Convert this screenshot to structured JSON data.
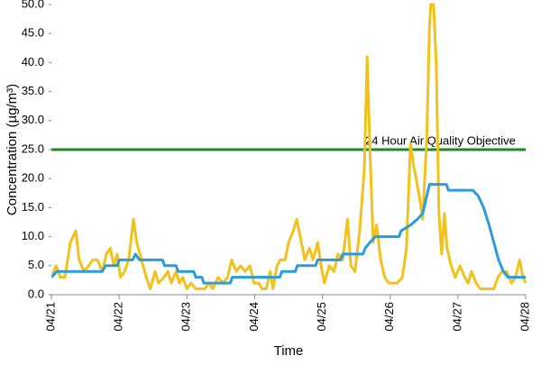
{
  "chart_data": {
    "type": "line",
    "xlabel": "Time",
    "ylabel": "Concentration (µg/m³)",
    "xlim": [
      0,
      7
    ],
    "ylim": [
      0,
      50
    ],
    "xticks": [
      {
        "value": 0,
        "label": "04/21"
      },
      {
        "value": 1,
        "label": "04/22"
      },
      {
        "value": 2,
        "label": "04/23"
      },
      {
        "value": 3,
        "label": "04/24"
      },
      {
        "value": 4,
        "label": "04/25"
      },
      {
        "value": 5,
        "label": "04/26"
      },
      {
        "value": 6,
        "label": "04/27"
      },
      {
        "value": 7,
        "label": "04/28"
      }
    ],
    "yticks": [
      {
        "value": 0,
        "label": "0.0"
      },
      {
        "value": 5,
        "label": "5.0"
      },
      {
        "value": 10,
        "label": "10.0"
      },
      {
        "value": 15,
        "label": "15.0"
      },
      {
        "value": 20,
        "label": "20.0"
      },
      {
        "value": 25,
        "label": "25.0"
      },
      {
        "value": 30,
        "label": "30.0"
      },
      {
        "value": 35,
        "label": "35.0"
      },
      {
        "value": 40,
        "label": "40.0"
      },
      {
        "value": 45,
        "label": "45.0"
      },
      {
        "value": 50,
        "label": "50.0"
      }
    ],
    "threshold": {
      "value": 25,
      "label": "24 Hour Air Quality Objective",
      "color": "#1f8a1f"
    },
    "series": [
      {
        "color": "#f2c21b",
        "x": [
          0,
          0.07,
          0.13,
          0.2,
          0.28,
          0.36,
          0.41,
          0.48,
          0.55,
          0.61,
          0.68,
          0.75,
          0.81,
          0.87,
          0.92,
          0.97,
          1.02,
          1.08,
          1.14,
          1.21,
          1.26,
          1.33,
          1.4,
          1.46,
          1.53,
          1.58,
          1.66,
          1.72,
          1.77,
          1.84,
          1.89,
          1.94,
          2.0,
          2.06,
          2.13,
          2.2,
          2.26,
          2.33,
          2.38,
          2.46,
          2.53,
          2.6,
          2.66,
          2.73,
          2.79,
          2.86,
          2.93,
          2.99,
          3.06,
          3.11,
          3.17,
          3.23,
          3.27,
          3.33,
          3.38,
          3.45,
          3.5,
          3.57,
          3.62,
          3.69,
          3.74,
          3.81,
          3.86,
          3.93,
          3.98,
          4.03,
          4.1,
          4.17,
          4.23,
          4.3,
          4.37,
          4.42,
          4.48,
          4.55,
          4.62,
          4.66,
          4.71,
          4.75,
          4.8,
          4.86,
          4.92,
          4.98,
          5.04,
          5.1,
          5.18,
          5.24,
          5.3,
          5.35,
          5.43,
          5.48,
          5.54,
          5.58,
          5.6,
          5.64,
          5.68,
          5.72,
          5.76,
          5.8,
          5.84,
          5.9,
          5.96,
          6.03,
          6.1,
          6.15,
          6.2,
          6.27,
          6.33,
          6.4,
          6.47,
          6.53,
          6.59,
          6.65,
          6.72,
          6.79,
          6.85,
          6.91,
          6.96,
          7.0
        ],
        "values": [
          3,
          5,
          3,
          3,
          9,
          11,
          6,
          4,
          5,
          6,
          6,
          4,
          7,
          8,
          5,
          7,
          3,
          4,
          6,
          13,
          9,
          6,
          3,
          1,
          4,
          2,
          3,
          4,
          2,
          4,
          2,
          3,
          1,
          2,
          1,
          1,
          1,
          2,
          1,
          3,
          2,
          3,
          6,
          4,
          5,
          4,
          5,
          2,
          2,
          1,
          1,
          4,
          1,
          5,
          6,
          6,
          9,
          11,
          13,
          9,
          6,
          8,
          6,
          9,
          5,
          2,
          5,
          4,
          7,
          6,
          13,
          5,
          4,
          11,
          22,
          41,
          22,
          9,
          12,
          6,
          3,
          2,
          2,
          2,
          3,
          8,
          26,
          22,
          17,
          13,
          27,
          46,
          50,
          50,
          40,
          14,
          7,
          14,
          8,
          5,
          3,
          5,
          3,
          2,
          4,
          2,
          1,
          1,
          1,
          1,
          3,
          4,
          4,
          2,
          3,
          6,
          3,
          2
        ]
      },
      {
        "color": "#2b9be0",
        "x": [
          0,
          0.08,
          0.75,
          0.8,
          0.97,
          1.0,
          1.2,
          1.24,
          1.3,
          1.64,
          1.67,
          1.84,
          1.87,
          2.1,
          2.13,
          2.22,
          2.25,
          2.64,
          2.67,
          3.37,
          3.4,
          3.6,
          3.63,
          3.9,
          3.93,
          4.27,
          4.3,
          4.6,
          4.63,
          4.7,
          4.78,
          5.13,
          5.16,
          5.3,
          5.4,
          5.48,
          5.52,
          5.58,
          5.83,
          5.86,
          6.22,
          6.3,
          6.38,
          6.46,
          6.53,
          6.6,
          6.67,
          6.74,
          7.0
        ],
        "values": [
          3,
          4,
          4,
          5,
          5,
          6,
          6,
          7,
          6,
          6,
          5,
          5,
          4,
          4,
          3,
          3,
          2,
          2,
          3,
          3,
          4,
          4,
          5,
          5,
          6,
          6,
          7,
          7,
          8,
          9,
          10,
          10,
          11,
          12,
          13,
          14,
          16,
          19,
          19,
          18,
          18,
          17,
          15,
          12,
          9,
          6,
          4,
          3,
          3
        ]
      }
    ]
  }
}
